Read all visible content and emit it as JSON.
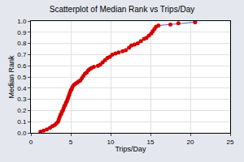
{
  "chart_data": {
    "type": "scatter",
    "title": "Scatterplot of Median Rank vs Trips/Day",
    "x_label": "Trips/Day",
    "y_label": "Median Rank",
    "series": [
      {
        "color": "#d40000",
        "marker": "circle",
        "line_style": "solid",
        "x": [
          1.2,
          1.6,
          2.0,
          2.4,
          2.7,
          3.0,
          3.2,
          3.4,
          3.5,
          3.6,
          3.7,
          3.8,
          3.9,
          4.0,
          4.1,
          4.2,
          4.3,
          4.4,
          4.5,
          4.6,
          4.7,
          4.8,
          4.9,
          5.0,
          5.1,
          5.2,
          5.4,
          5.6,
          5.8,
          6.0,
          6.2,
          6.4,
          6.6,
          6.8,
          7.0,
          7.2,
          7.4,
          7.6,
          7.9,
          8.4,
          8.7,
          9.0,
          9.3,
          9.6,
          9.9,
          10.2,
          10.6,
          11.0,
          11.5,
          11.9,
          12.3,
          12.6,
          13.0,
          13.4,
          13.8,
          14.2,
          14.5,
          14.8,
          15.1,
          15.3,
          15.5,
          15.7,
          16.0,
          17.5,
          18.5,
          20.6
        ],
        "values": [
          0.01,
          0.02,
          0.03,
          0.045,
          0.06,
          0.07,
          0.085,
          0.1,
          0.12,
          0.14,
          0.16,
          0.17,
          0.19,
          0.2,
          0.22,
          0.24,
          0.25,
          0.27,
          0.28,
          0.3,
          0.32,
          0.34,
          0.36,
          0.38,
          0.39,
          0.41,
          0.43,
          0.44,
          0.45,
          0.46,
          0.47,
          0.49,
          0.51,
          0.53,
          0.54,
          0.56,
          0.57,
          0.58,
          0.59,
          0.6,
          0.61,
          0.63,
          0.65,
          0.67,
          0.68,
          0.7,
          0.71,
          0.72,
          0.73,
          0.74,
          0.76,
          0.78,
          0.79,
          0.8,
          0.82,
          0.84,
          0.85,
          0.87,
          0.89,
          0.91,
          0.93,
          0.95,
          0.96,
          0.97,
          0.98,
          0.99
        ]
      }
    ],
    "xlim": [
      0,
      25
    ],
    "xticks": [
      0,
      5,
      10,
      15,
      20,
      25
    ],
    "ylim": [
      0,
      1
    ],
    "yticks": [
      {
        "value": 0,
        "label": "0.0"
      },
      0.1,
      0.2,
      0.3,
      0.4,
      0.5,
      0.6,
      0.7,
      0.8,
      0.9,
      {
        "value": 1,
        "label": "1.0"
      }
    ],
    "grid": true
  }
}
